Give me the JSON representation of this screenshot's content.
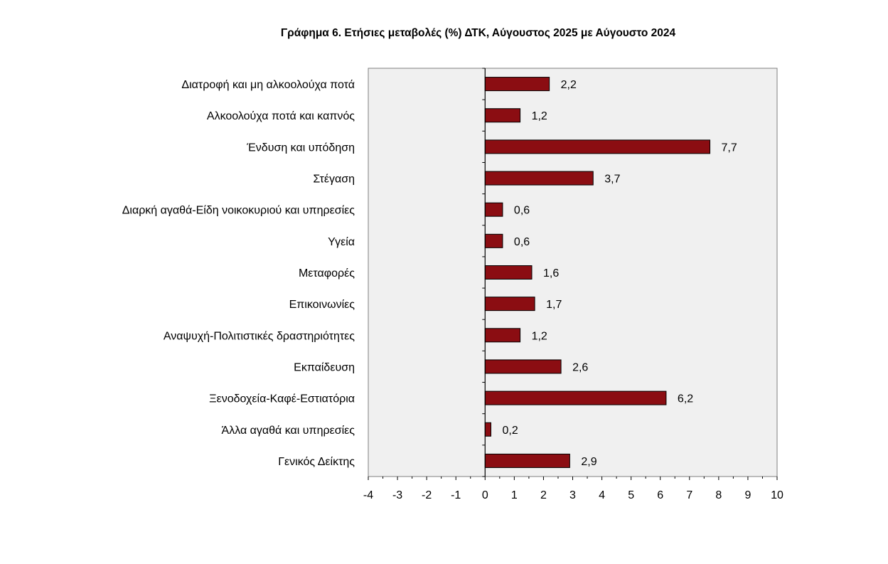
{
  "chart_data": {
    "type": "bar",
    "orientation": "horizontal",
    "title": "Γράφημα 6. Ετήσιες μεταβολές (%) ΔΤΚ, Αύγουστος 2025 με Αύγουστο 2024",
    "categories": [
      "Διατροφή και μη αλκοολούχα ποτά",
      "Αλκοολούχα ποτά και καπνός",
      "Ένδυση και υπόδηση",
      "Στέγαση",
      "Διαρκή αγαθά-Είδη νοικοκυριού και υπηρεσίες",
      "Υγεία",
      "Μεταφορές",
      "Επικοινωνίες",
      "Αναψυχή-Πολιτιστικές δραστηριότητες",
      "Εκπαίδευση",
      "Ξενοδοχεία-Καφέ-Εστιατόρια",
      "Άλλα αγαθά και υπηρεσίες",
      "Γενικός Δείκτης"
    ],
    "values": [
      2.2,
      1.2,
      7.7,
      3.7,
      0.6,
      0.6,
      1.6,
      1.7,
      1.2,
      2.6,
      6.2,
      0.2,
      2.9
    ],
    "value_labels": [
      "2,2",
      "1,2",
      "7,7",
      "3,7",
      "0,6",
      "0,6",
      "1,6",
      "1,7",
      "1,2",
      "2,6",
      "6,2",
      "0,2",
      "2,9"
    ],
    "xlim": [
      -4,
      10
    ],
    "xticks": [
      -4,
      -3,
      -2,
      -1,
      0,
      1,
      2,
      3,
      4,
      5,
      6,
      7,
      8,
      9,
      10
    ],
    "bar_color": "#8b0d12",
    "plot_background": "#f0f0f0",
    "grid": false,
    "legend": "none"
  }
}
